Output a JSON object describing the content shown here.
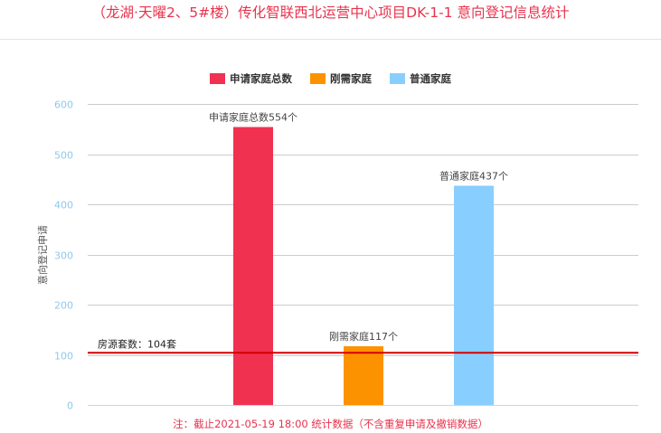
{
  "title": "（龙湖·天曜2、5#楼）传化智联西北运营中心项目DK-1-1 意向登记信息统计",
  "footnote": "注：截止2021-05-19 18:00 统计数据（不含重复申请及撤销数据）",
  "colors": {
    "title": "#e8334d",
    "axis_text": "#8ec9ec",
    "gridline": "#cccccc",
    "reference_line": "#d40000"
  },
  "chart_data": {
    "type": "bar",
    "title": "",
    "xlabel": "",
    "ylabel": "意向登记申请",
    "ylim": [
      0,
      600
    ],
    "yticks": [
      0,
      100,
      200,
      300,
      400,
      500,
      600
    ],
    "grid": true,
    "legend_position": "top",
    "series": [
      {
        "name": "申请家庭总数",
        "color": "#f03150",
        "value": 554,
        "label": "申请家庭总数554个"
      },
      {
        "name": "刚需家庭",
        "color": "#fd9200",
        "value": 117,
        "label": "刚需家庭117个"
      },
      {
        "name": "普通家庭",
        "color": "#88cfff",
        "value": 437,
        "label": "普通家庭437个"
      }
    ],
    "reference_line": {
      "value": 104,
      "label": "房源套数：104套"
    }
  }
}
